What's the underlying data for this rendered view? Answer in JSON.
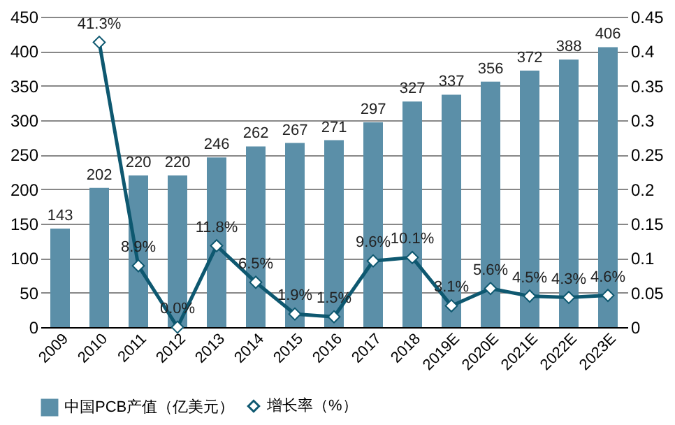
{
  "chart_data": {
    "type": "bar",
    "categories": [
      "2009",
      "2010",
      "2011",
      "2012",
      "2013",
      "2014",
      "2015",
      "2016",
      "2017",
      "2018",
      "2019E",
      "2020E",
      "2021E",
      "2022E",
      "2023E"
    ],
    "series": [
      {
        "name": "中国PCB产值（亿美元）",
        "color": "#5b8fa8",
        "values": [
          143,
          202,
          220,
          220,
          246,
          262,
          267,
          271,
          297,
          327,
          337,
          356,
          372,
          388,
          406
        ],
        "value_labels": [
          "143",
          "202",
          "220",
          "220",
          "246",
          "262",
          "267",
          "271",
          "297",
          "327",
          "337",
          "356",
          "372",
          "388",
          "406"
        ]
      },
      {
        "name": "增长率（%）",
        "type": "line",
        "axis": "y2",
        "color": "#0e5870",
        "marker": "diamond",
        "values": [
          null,
          0.413,
          0.089,
          0.0,
          0.118,
          0.065,
          0.019,
          0.015,
          0.096,
          0.101,
          0.031,
          0.056,
          0.045,
          0.043,
          0.046
        ],
        "value_labels": [
          null,
          "41.3%",
          "8.9%",
          "0.0%",
          "11.8%",
          "6.5%",
          "1.9%",
          "1.5%",
          "9.6%",
          "10.1%",
          "3.1%",
          "5.6%",
          "4.5%",
          "4.3%",
          "4.6%"
        ]
      }
    ],
    "ylim": [
      0,
      450
    ],
    "yticks": [
      0,
      50,
      100,
      150,
      200,
      250,
      300,
      350,
      400,
      450
    ],
    "y2lim": [
      0,
      0.45
    ],
    "y2ticks": [
      0,
      0.05,
      0.1,
      0.15,
      0.2,
      0.25,
      0.3,
      0.35,
      0.4,
      0.45
    ],
    "grid": "y",
    "legend": "bottom"
  }
}
